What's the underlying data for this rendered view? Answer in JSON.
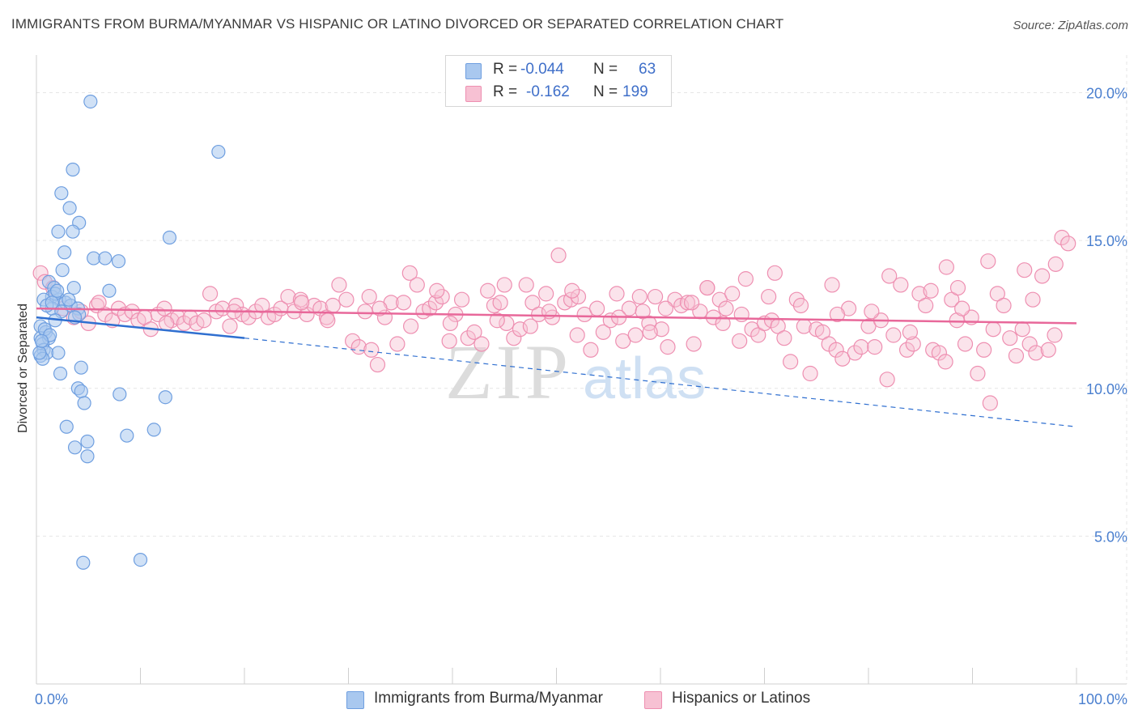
{
  "title": "IMMIGRANTS FROM BURMA/MYANMAR VS HISPANIC OR LATINO DIVORCED OR SEPARATED CORRELATION CHART",
  "source": "Source: ZipAtlas.com",
  "watermark": {
    "zip": "ZIP",
    "atlas": "atlas"
  },
  "legend": {
    "r_label": "R =",
    "n_label": "N =",
    "series": [
      {
        "r": "-0.044",
        "n": "63"
      },
      {
        "r": "-0.162",
        "n": "199"
      }
    ]
  },
  "bottom_legend": [
    "Immigrants from Burma/Myanmar",
    "Hispanics or Latinos"
  ],
  "colors": {
    "blue_fill": "#a9c8ef",
    "blue_stroke": "#6f9fe0",
    "blue_line": "#2f6fd0",
    "pink_fill": "#f7c1d3",
    "pink_stroke": "#ee8fb1",
    "pink_line": "#e8689a",
    "tick": "#4a7fcf"
  },
  "chart_data": {
    "type": "scatter",
    "title": "IMMIGRANTS FROM BURMA/MYANMAR VS HISPANIC OR LATINO DIVORCED OR SEPARATED CORRELATION CHART",
    "xlabel": "",
    "ylabel": "Divorced or Separated",
    "xlim": [
      0,
      100
    ],
    "ylim": [
      0,
      21
    ],
    "x_tick_labels": [
      "0.0%",
      "100.0%"
    ],
    "y_ticks": [
      5,
      10,
      15,
      20
    ],
    "y_tick_labels": [
      "5.0%",
      "10.0%",
      "15.0%",
      "20.0%"
    ],
    "grid": true,
    "series": [
      {
        "name": "Immigrants from Burma/Myanmar",
        "trend": {
          "x": [
            0,
            20
          ],
          "y": [
            12.4,
            11.7
          ],
          "dashed_to": [
            100,
            8.7
          ]
        },
        "points": [
          [
            5.2,
            19.7
          ],
          [
            17.5,
            18.0
          ],
          [
            3.5,
            17.4
          ],
          [
            2.4,
            16.6
          ],
          [
            3.2,
            16.1
          ],
          [
            4.1,
            15.6
          ],
          [
            2.1,
            15.3
          ],
          [
            3.5,
            15.3
          ],
          [
            12.8,
            15.1
          ],
          [
            2.7,
            14.6
          ],
          [
            5.5,
            14.4
          ],
          [
            7.9,
            14.3
          ],
          [
            6.6,
            14.4
          ],
          [
            2.5,
            14.0
          ],
          [
            1.2,
            13.6
          ],
          [
            1.7,
            13.4
          ],
          [
            3.6,
            13.4
          ],
          [
            7.0,
            13.3
          ],
          [
            1.5,
            13.1
          ],
          [
            0.7,
            13.0
          ],
          [
            2.2,
            13.0
          ],
          [
            1.8,
            13.2
          ],
          [
            2.8,
            12.9
          ],
          [
            1.5,
            12.7
          ],
          [
            3.3,
            12.8
          ],
          [
            4.0,
            12.7
          ],
          [
            1.0,
            12.8
          ],
          [
            2.4,
            12.6
          ],
          [
            4.1,
            12.5
          ],
          [
            3.7,
            12.4
          ],
          [
            1.8,
            12.3
          ],
          [
            0.4,
            12.1
          ],
          [
            0.9,
            11.9
          ],
          [
            0.4,
            11.7
          ],
          [
            1.2,
            11.7
          ],
          [
            0.6,
            11.5
          ],
          [
            0.7,
            11.3
          ],
          [
            1.0,
            11.2
          ],
          [
            2.1,
            11.2
          ],
          [
            0.4,
            11.1
          ],
          [
            0.6,
            11.0
          ],
          [
            0.3,
            11.2
          ],
          [
            4.3,
            10.7
          ],
          [
            2.3,
            10.5
          ],
          [
            4.0,
            10.0
          ],
          [
            4.3,
            9.9
          ],
          [
            8.0,
            9.8
          ],
          [
            12.4,
            9.7
          ],
          [
            4.6,
            9.5
          ],
          [
            2.9,
            8.7
          ],
          [
            11.3,
            8.6
          ],
          [
            8.7,
            8.4
          ],
          [
            4.9,
            8.2
          ],
          [
            3.7,
            8.0
          ],
          [
            4.9,
            7.7
          ],
          [
            4.5,
            4.1
          ],
          [
            10.0,
            4.2
          ],
          [
            1.5,
            12.9
          ],
          [
            2.0,
            13.3
          ],
          [
            0.8,
            12.0
          ],
          [
            1.3,
            11.8
          ],
          [
            3.1,
            13.0
          ],
          [
            0.5,
            11.6
          ]
        ]
      },
      {
        "name": "Hispanics or Latinos",
        "trend": {
          "x": [
            0,
            100
          ],
          "y": [
            12.7,
            12.2
          ]
        },
        "points": [
          [
            0.4,
            13.9
          ],
          [
            0.8,
            13.6
          ],
          [
            1.6,
            13.4
          ],
          [
            2.6,
            12.7
          ],
          [
            3.6,
            12.4
          ],
          [
            4.3,
            12.6
          ],
          [
            5.0,
            12.2
          ],
          [
            5.8,
            12.8
          ],
          [
            6.6,
            12.5
          ],
          [
            7.3,
            12.3
          ],
          [
            7.9,
            12.7
          ],
          [
            8.5,
            12.5
          ],
          [
            9.2,
            12.6
          ],
          [
            9.8,
            12.3
          ],
          [
            10.4,
            12.4
          ],
          [
            11.0,
            12.0
          ],
          [
            11.7,
            12.5
          ],
          [
            12.3,
            12.7
          ],
          [
            13.0,
            12.3
          ],
          [
            13.6,
            12.4
          ],
          [
            14.2,
            12.2
          ],
          [
            14.8,
            12.4
          ],
          [
            15.4,
            12.2
          ],
          [
            16.1,
            12.3
          ],
          [
            16.7,
            13.2
          ],
          [
            17.3,
            12.6
          ],
          [
            17.9,
            12.7
          ],
          [
            18.6,
            12.1
          ],
          [
            19.2,
            12.8
          ],
          [
            19.8,
            12.5
          ],
          [
            20.4,
            12.4
          ],
          [
            21.1,
            12.6
          ],
          [
            21.7,
            12.8
          ],
          [
            22.3,
            12.4
          ],
          [
            22.9,
            12.5
          ],
          [
            23.5,
            12.7
          ],
          [
            24.2,
            13.1
          ],
          [
            24.8,
            12.6
          ],
          [
            25.4,
            13.0
          ],
          [
            26.0,
            12.5
          ],
          [
            26.7,
            12.8
          ],
          [
            27.3,
            12.7
          ],
          [
            27.9,
            12.4
          ],
          [
            28.5,
            12.8
          ],
          [
            29.1,
            13.5
          ],
          [
            29.8,
            13.0
          ],
          [
            30.4,
            11.6
          ],
          [
            31.0,
            11.4
          ],
          [
            31.6,
            12.6
          ],
          [
            32.2,
            11.3
          ],
          [
            32.8,
            10.8
          ],
          [
            33.5,
            12.4
          ],
          [
            34.1,
            12.9
          ],
          [
            34.7,
            11.5
          ],
          [
            35.3,
            12.9
          ],
          [
            35.9,
            13.9
          ],
          [
            36.6,
            13.5
          ],
          [
            37.2,
            12.6
          ],
          [
            37.8,
            12.7
          ],
          [
            38.4,
            12.9
          ],
          [
            39.0,
            13.1
          ],
          [
            39.7,
            11.6
          ],
          [
            40.3,
            12.5
          ],
          [
            40.9,
            13.0
          ],
          [
            41.5,
            11.7
          ],
          [
            42.1,
            11.9
          ],
          [
            42.8,
            11.5
          ],
          [
            43.4,
            13.3
          ],
          [
            44.0,
            12.8
          ],
          [
            44.6,
            12.9
          ],
          [
            45.2,
            12.2
          ],
          [
            45.9,
            11.7
          ],
          [
            46.5,
            12.0
          ],
          [
            47.1,
            13.5
          ],
          [
            47.7,
            12.9
          ],
          [
            48.3,
            12.5
          ],
          [
            49.0,
            13.2
          ],
          [
            49.6,
            12.4
          ],
          [
            50.2,
            14.5
          ],
          [
            50.8,
            12.9
          ],
          [
            51.4,
            13.0
          ],
          [
            52.1,
            13.1
          ],
          [
            52.7,
            12.5
          ],
          [
            53.3,
            11.3
          ],
          [
            53.9,
            12.7
          ],
          [
            54.5,
            11.9
          ],
          [
            55.2,
            12.3
          ],
          [
            55.8,
            13.2
          ],
          [
            56.4,
            11.6
          ],
          [
            57.0,
            12.7
          ],
          [
            57.6,
            11.8
          ],
          [
            58.3,
            12.6
          ],
          [
            58.9,
            12.2
          ],
          [
            59.5,
            13.1
          ],
          [
            60.1,
            12.0
          ],
          [
            60.7,
            11.4
          ],
          [
            61.4,
            13.0
          ],
          [
            62.0,
            12.8
          ],
          [
            62.6,
            12.9
          ],
          [
            63.2,
            11.5
          ],
          [
            63.8,
            12.6
          ],
          [
            64.5,
            13.4
          ],
          [
            65.1,
            12.4
          ],
          [
            65.7,
            13.0
          ],
          [
            66.3,
            12.7
          ],
          [
            66.9,
            13.2
          ],
          [
            67.6,
            11.6
          ],
          [
            68.2,
            13.7
          ],
          [
            68.8,
            12.0
          ],
          [
            69.4,
            11.8
          ],
          [
            70.0,
            12.2
          ],
          [
            70.7,
            12.3
          ],
          [
            71.3,
            12.1
          ],
          [
            71.9,
            11.7
          ],
          [
            72.5,
            10.9
          ],
          [
            73.1,
            13.0
          ],
          [
            73.8,
            12.1
          ],
          [
            74.4,
            10.5
          ],
          [
            75.0,
            12.0
          ],
          [
            75.6,
            11.9
          ],
          [
            76.2,
            11.5
          ],
          [
            76.9,
            11.3
          ],
          [
            77.5,
            11.0
          ],
          [
            78.1,
            12.7
          ],
          [
            78.7,
            11.2
          ],
          [
            79.3,
            11.4
          ],
          [
            80.0,
            12.1
          ],
          [
            80.6,
            11.4
          ],
          [
            81.2,
            12.3
          ],
          [
            81.8,
            10.3
          ],
          [
            82.4,
            11.8
          ],
          [
            83.1,
            13.5
          ],
          [
            83.7,
            11.3
          ],
          [
            84.3,
            11.5
          ],
          [
            84.9,
            13.2
          ],
          [
            85.5,
            12.8
          ],
          [
            86.2,
            11.3
          ],
          [
            86.8,
            11.2
          ],
          [
            87.4,
            10.9
          ],
          [
            88.0,
            13.0
          ],
          [
            88.6,
            13.4
          ],
          [
            89.3,
            11.5
          ],
          [
            89.9,
            12.4
          ],
          [
            90.5,
            10.5
          ],
          [
            91.1,
            11.3
          ],
          [
            91.7,
            9.5
          ],
          [
            92.4,
            13.2
          ],
          [
            93.0,
            12.8
          ],
          [
            93.6,
            11.7
          ],
          [
            94.2,
            11.1
          ],
          [
            94.8,
            12.0
          ],
          [
            95.5,
            11.5
          ],
          [
            96.1,
            11.2
          ],
          [
            96.7,
            13.8
          ],
          [
            97.3,
            11.3
          ],
          [
            97.9,
            11.8
          ],
          [
            98.6,
            15.1
          ],
          [
            99.2,
            14.9
          ],
          [
            98.0,
            14.2
          ],
          [
            95.0,
            14.0
          ],
          [
            91.5,
            14.3
          ],
          [
            87.5,
            14.1
          ],
          [
            82.0,
            13.8
          ],
          [
            76.5,
            13.5
          ],
          [
            71.0,
            13.9
          ],
          [
            64.5,
            13.4
          ],
          [
            58.0,
            13.1
          ],
          [
            51.5,
            13.3
          ],
          [
            45.0,
            13.5
          ],
          [
            38.5,
            13.3
          ],
          [
            32.0,
            13.1
          ],
          [
            25.5,
            12.9
          ],
          [
            19.0,
            12.6
          ],
          [
            12.5,
            12.2
          ],
          [
            6.0,
            12.9
          ],
          [
            88.5,
            12.3
          ],
          [
            60.5,
            12.7
          ],
          [
            47.5,
            12.1
          ],
          [
            36.0,
            12.1
          ],
          [
            67.8,
            12.5
          ],
          [
            84.0,
            11.9
          ],
          [
            92.0,
            12.0
          ],
          [
            39.8,
            12.2
          ],
          [
            56.0,
            12.4
          ],
          [
            73.5,
            12.8
          ],
          [
            80.3,
            12.6
          ],
          [
            95.8,
            13.0
          ],
          [
            63.0,
            12.9
          ],
          [
            44.3,
            12.3
          ],
          [
            28.0,
            12.3
          ],
          [
            70.4,
            13.1
          ],
          [
            52.0,
            11.8
          ],
          [
            86.0,
            13.3
          ],
          [
            77.0,
            12.5
          ],
          [
            89.0,
            12.7
          ],
          [
            59.0,
            11.9
          ],
          [
            66.0,
            12.2
          ],
          [
            33.0,
            12.7
          ],
          [
            49.3,
            12.6
          ]
        ]
      }
    ]
  }
}
